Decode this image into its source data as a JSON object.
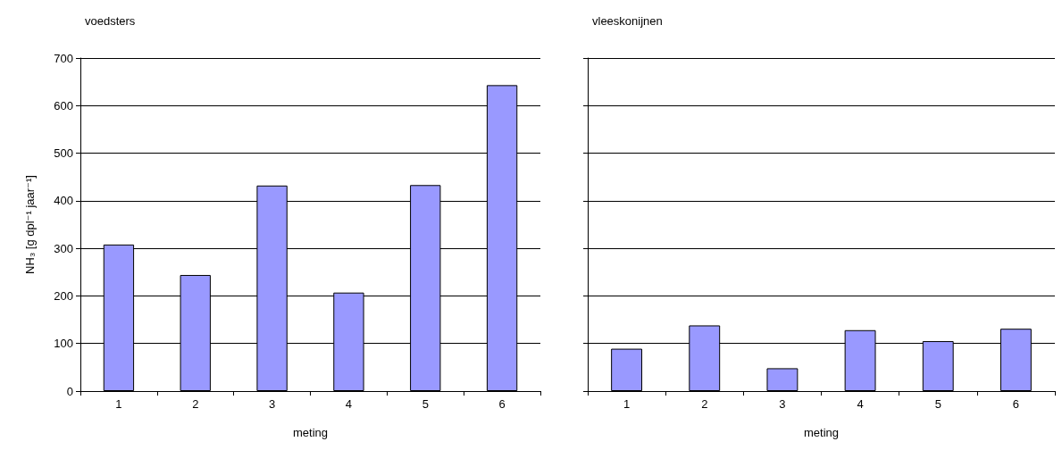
{
  "chart_data": [
    {
      "type": "bar",
      "title": "voedsters",
      "xlabel": "meting",
      "ylabel": "NH₃ [g dpl⁻¹ jaar⁻¹]",
      "categories": [
        "1",
        "2",
        "3",
        "4",
        "5",
        "6"
      ],
      "values": [
        308,
        244,
        432,
        207,
        433,
        643
      ],
      "color": "#9999ff",
      "ylim": [
        0,
        700
      ],
      "yticks": [
        0,
        100,
        200,
        300,
        400,
        500,
        600,
        700
      ],
      "grid": "y"
    },
    {
      "type": "bar",
      "title": "vleeskonijnen",
      "xlabel": "meting",
      "categories": [
        "1",
        "2",
        "3",
        "4",
        "5",
        "6"
      ],
      "values": [
        89,
        138,
        48,
        128,
        105,
        131
      ],
      "color": "#9999ff",
      "ylim": [
        0,
        700
      ],
      "yticks": [
        0,
        100,
        200,
        300,
        400,
        500,
        600,
        700
      ],
      "grid": "y",
      "tick_labels": "x"
    }
  ]
}
